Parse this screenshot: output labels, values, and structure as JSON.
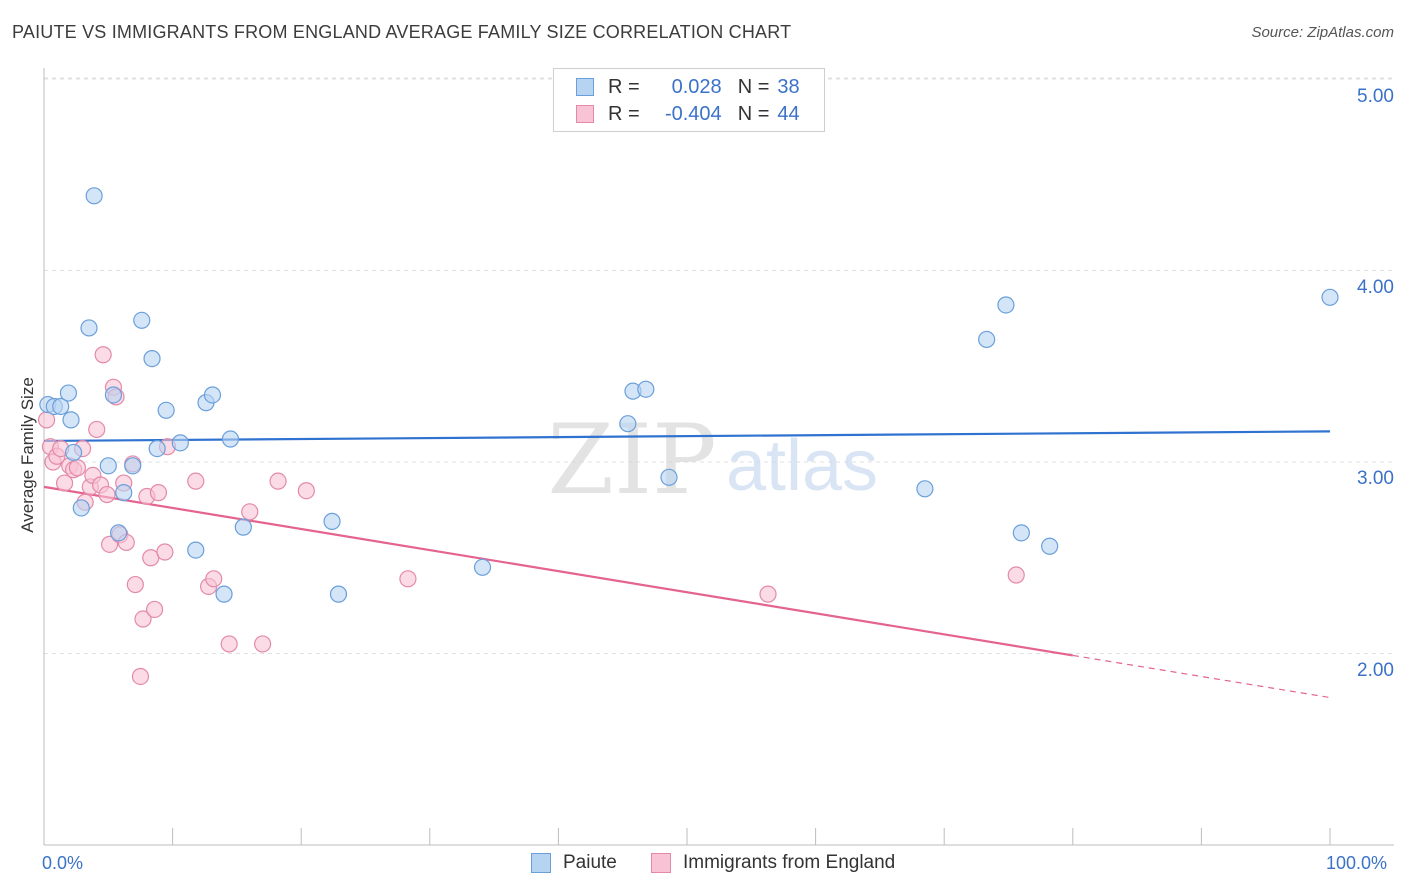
{
  "title": "PAIUTE VS IMMIGRANTS FROM ENGLAND AVERAGE FAMILY SIZE CORRELATION CHART",
  "source": "Source: ZipAtlas.com",
  "watermark": {
    "zip": "ZIP",
    "atlas": "atlas"
  },
  "legend": {
    "rows": [
      {
        "r_label": "R =",
        "r_value": "0.028",
        "n_label": "N =",
        "n_value": "38"
      },
      {
        "r_label": "R =",
        "r_value": "-0.404",
        "n_label": "N =",
        "n_value": "44"
      }
    ]
  },
  "bottom_legend": [
    "Paiute",
    "Immigrants from England"
  ],
  "colors": {
    "paiute_fill": "#b7d3f2",
    "paiute_stroke": "#6a9fdb",
    "paiute_line": "#2f72d0",
    "england_fill": "#f8c3d4",
    "england_stroke": "#e38aa9",
    "england_line": "#e4638f",
    "tick_text": "#3b72c8",
    "grid": "#e0e0e0"
  },
  "chart_data": {
    "type": "scatter",
    "title": "PAIUTE VS IMMIGRANTS FROM ENGLAND AVERAGE FAMILY SIZE CORRELATION CHART",
    "xlabel": "",
    "ylabel": "Average Family Size",
    "xlim": [
      0,
      100
    ],
    "ylim": [
      1.0,
      5.1
    ],
    "x_tick_labels": [
      "0.0%",
      "100.0%"
    ],
    "y_ticks": [
      2.0,
      3.0,
      4.0,
      5.0
    ],
    "y_tick_labels": [
      "2.00",
      "3.00",
      "4.00",
      "5.00"
    ],
    "series": [
      {
        "name": "Paiute",
        "R": 0.028,
        "N": 38,
        "trend": {
          "x0": 0,
          "y0": 3.11,
          "x1": 100,
          "y1": 3.16,
          "dashed_from": null
        },
        "points": [
          [
            0.3,
            3.3
          ],
          [
            0.8,
            3.29
          ],
          [
            1.3,
            3.29
          ],
          [
            1.9,
            3.36
          ],
          [
            2.1,
            3.22
          ],
          [
            2.3,
            3.05
          ],
          [
            2.9,
            2.76
          ],
          [
            3.5,
            3.7
          ],
          [
            3.9,
            4.39
          ],
          [
            5.0,
            2.98
          ],
          [
            5.4,
            3.35
          ],
          [
            5.8,
            2.63
          ],
          [
            6.2,
            2.84
          ],
          [
            6.9,
            2.98
          ],
          [
            7.6,
            3.74
          ],
          [
            8.4,
            3.54
          ],
          [
            8.8,
            3.07
          ],
          [
            9.5,
            3.27
          ],
          [
            10.6,
            3.1
          ],
          [
            11.8,
            2.54
          ],
          [
            12.6,
            3.31
          ],
          [
            13.1,
            3.35
          ],
          [
            14.0,
            2.31
          ],
          [
            14.5,
            3.12
          ],
          [
            15.5,
            2.66
          ],
          [
            22.4,
            2.69
          ],
          [
            22.9,
            2.31
          ],
          [
            34.1,
            2.45
          ],
          [
            45.4,
            3.2
          ],
          [
            45.8,
            3.37
          ],
          [
            46.8,
            3.38
          ],
          [
            48.6,
            2.92
          ],
          [
            68.5,
            2.86
          ],
          [
            73.3,
            3.64
          ],
          [
            74.8,
            3.82
          ],
          [
            76.0,
            2.63
          ],
          [
            78.2,
            2.56
          ],
          [
            100.0,
            3.86
          ]
        ]
      },
      {
        "name": "Immigrants from England",
        "R": -0.404,
        "N": 44,
        "trend": {
          "x0": 0,
          "y0": 2.87,
          "x1": 100,
          "y1": 1.77,
          "dashed_from": 80
        },
        "points": [
          [
            0.2,
            3.22
          ],
          [
            0.5,
            3.08
          ],
          [
            0.7,
            3.0
          ],
          [
            1.0,
            3.03
          ],
          [
            1.3,
            3.07
          ],
          [
            1.6,
            2.89
          ],
          [
            2.0,
            2.98
          ],
          [
            2.3,
            2.96
          ],
          [
            2.6,
            2.97
          ],
          [
            3.0,
            3.07
          ],
          [
            3.2,
            2.79
          ],
          [
            3.6,
            2.87
          ],
          [
            3.8,
            2.93
          ],
          [
            4.1,
            3.17
          ],
          [
            4.4,
            2.88
          ],
          [
            4.6,
            3.56
          ],
          [
            4.9,
            2.83
          ],
          [
            5.1,
            2.57
          ],
          [
            5.4,
            3.39
          ],
          [
            5.6,
            3.34
          ],
          [
            5.9,
            2.62
          ],
          [
            6.2,
            2.89
          ],
          [
            6.4,
            2.58
          ],
          [
            6.9,
            2.99
          ],
          [
            7.1,
            2.36
          ],
          [
            7.5,
            1.88
          ],
          [
            7.7,
            2.18
          ],
          [
            8.0,
            2.82
          ],
          [
            8.3,
            2.5
          ],
          [
            8.6,
            2.23
          ],
          [
            8.9,
            2.84
          ],
          [
            9.4,
            2.53
          ],
          [
            9.6,
            3.08
          ],
          [
            11.8,
            2.9
          ],
          [
            12.8,
            2.35
          ],
          [
            13.2,
            2.39
          ],
          [
            14.4,
            2.05
          ],
          [
            16.0,
            2.74
          ],
          [
            17.0,
            2.05
          ],
          [
            18.2,
            2.9
          ],
          [
            20.4,
            2.85
          ],
          [
            28.3,
            2.39
          ],
          [
            56.3,
            2.31
          ],
          [
            75.6,
            2.41
          ]
        ]
      }
    ]
  }
}
